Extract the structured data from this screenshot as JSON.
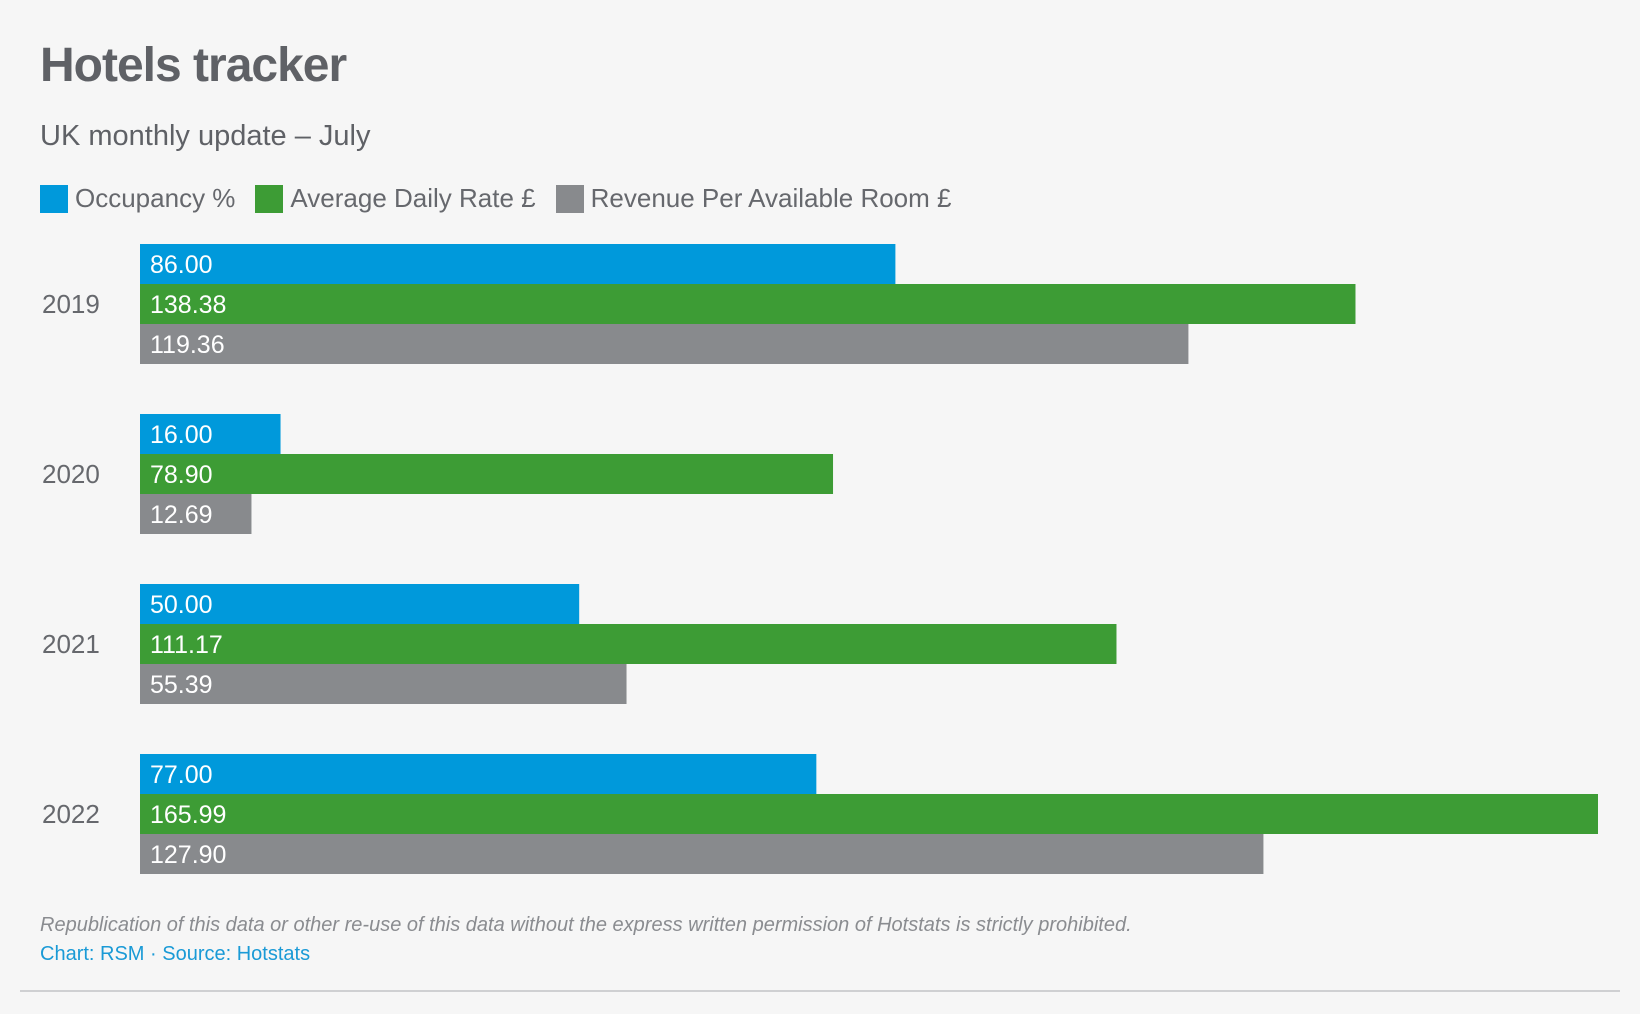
{
  "chart_data": {
    "type": "bar",
    "orientation": "horizontal",
    "title": "Hotels tracker",
    "subtitle": "UK monthly update – July",
    "categories": [
      "2019",
      "2020",
      "2021",
      "2022"
    ],
    "series": [
      {
        "name": "Occupancy %",
        "color": "#0099db",
        "values": [
          86.0,
          16.0,
          50.0,
          77.0
        ],
        "labels": [
          "86.00",
          "16.00",
          "50.00",
          "77.00"
        ]
      },
      {
        "name": "Average Daily Rate £",
        "color": "#3d9c35",
        "values": [
          138.38,
          78.9,
          111.17,
          165.99
        ],
        "labels": [
          "138.38",
          "78.90",
          "111.17",
          "165.99"
        ]
      },
      {
        "name": "Revenue Per Available Room £",
        "color": "#888a8d",
        "values": [
          119.36,
          12.69,
          55.39,
          127.9
        ],
        "labels": [
          "119.36",
          "12.69",
          "55.39",
          "127.90"
        ]
      }
    ],
    "xlim": [
      0,
      165.99
    ],
    "grid": false,
    "legend_position": "top-left"
  },
  "footer": {
    "note": "Republication of this data or other re-use of this data without the express written permission of Hotstats is strictly prohibited.",
    "credits": "Chart: RSM · Source: Hotstats"
  }
}
